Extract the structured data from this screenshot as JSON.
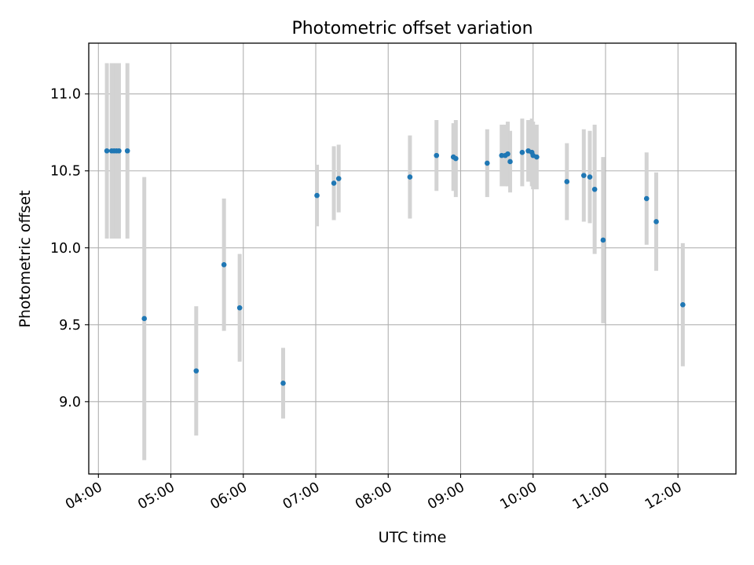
{
  "chart_data": {
    "type": "scatter",
    "title": "Photometric offset variation",
    "xlabel": "UTC time",
    "ylabel": "Photometric offset",
    "x_unit": "UTC hh:mm",
    "xlim": [
      "03:52",
      "12:48"
    ],
    "ylim": [
      8.53,
      11.33
    ],
    "grid": true,
    "x_ticks": [
      "04:00",
      "05:00",
      "06:00",
      "07:00",
      "08:00",
      "09:00",
      "10:00",
      "11:00",
      "12:00"
    ],
    "y_ticks": [
      "9.0",
      "9.5",
      "10.0",
      "10.5",
      "11.0"
    ],
    "points": [
      {
        "x": "04:07",
        "y": 10.63,
        "err": 0.57
      },
      {
        "x": "04:11",
        "y": 10.63,
        "err": 0.57
      },
      {
        "x": "04:13",
        "y": 10.63,
        "err": 0.57
      },
      {
        "x": "04:15",
        "y": 10.63,
        "err": 0.57
      },
      {
        "x": "04:17",
        "y": 10.63,
        "err": 0.57
      },
      {
        "x": "04:24",
        "y": 10.63,
        "err": 0.57
      },
      {
        "x": "04:38",
        "y": 9.54,
        "err": 0.92
      },
      {
        "x": "05:21",
        "y": 9.2,
        "err": 0.42
      },
      {
        "x": "05:44",
        "y": 9.89,
        "err": 0.43
      },
      {
        "x": "05:57",
        "y": 9.61,
        "err": 0.35
      },
      {
        "x": "06:33",
        "y": 9.12,
        "err": 0.23
      },
      {
        "x": "07:01",
        "y": 10.34,
        "err": 0.2
      },
      {
        "x": "07:15",
        "y": 10.42,
        "err": 0.24
      },
      {
        "x": "07:19",
        "y": 10.45,
        "err": 0.22
      },
      {
        "x": "08:18",
        "y": 10.46,
        "err": 0.27
      },
      {
        "x": "08:40",
        "y": 10.6,
        "err": 0.23
      },
      {
        "x": "08:54",
        "y": 10.59,
        "err": 0.22
      },
      {
        "x": "08:56",
        "y": 10.58,
        "err": 0.25
      },
      {
        "x": "09:22",
        "y": 10.55,
        "err": 0.22
      },
      {
        "x": "09:34",
        "y": 10.6,
        "err": 0.2
      },
      {
        "x": "09:37",
        "y": 10.6,
        "err": 0.2
      },
      {
        "x": "09:39",
        "y": 10.61,
        "err": 0.21
      },
      {
        "x": "09:41",
        "y": 10.56,
        "err": 0.2
      },
      {
        "x": "09:51",
        "y": 10.62,
        "err": 0.22
      },
      {
        "x": "09:56",
        "y": 10.63,
        "err": 0.2
      },
      {
        "x": "09:59",
        "y": 10.62,
        "err": 0.22
      },
      {
        "x": "10:00",
        "y": 10.6,
        "err": 0.22
      },
      {
        "x": "10:03",
        "y": 10.59,
        "err": 0.21
      },
      {
        "x": "10:28",
        "y": 10.43,
        "err": 0.25
      },
      {
        "x": "10:42",
        "y": 10.47,
        "err": 0.3
      },
      {
        "x": "10:47",
        "y": 10.46,
        "err": 0.3
      },
      {
        "x": "10:51",
        "y": 10.38,
        "err": 0.42
      },
      {
        "x": "10:58",
        "y": 10.05,
        "err": 0.54
      },
      {
        "x": "11:34",
        "y": 10.32,
        "err": 0.3
      },
      {
        "x": "11:42",
        "y": 10.17,
        "err": 0.32
      },
      {
        "x": "12:04",
        "y": 9.63,
        "err": 0.4
      }
    ],
    "colors": {
      "marker": "#1f77b4",
      "errorbar": "#d3d3d3",
      "grid": "#b0b0b0",
      "axes": "#000000"
    }
  }
}
